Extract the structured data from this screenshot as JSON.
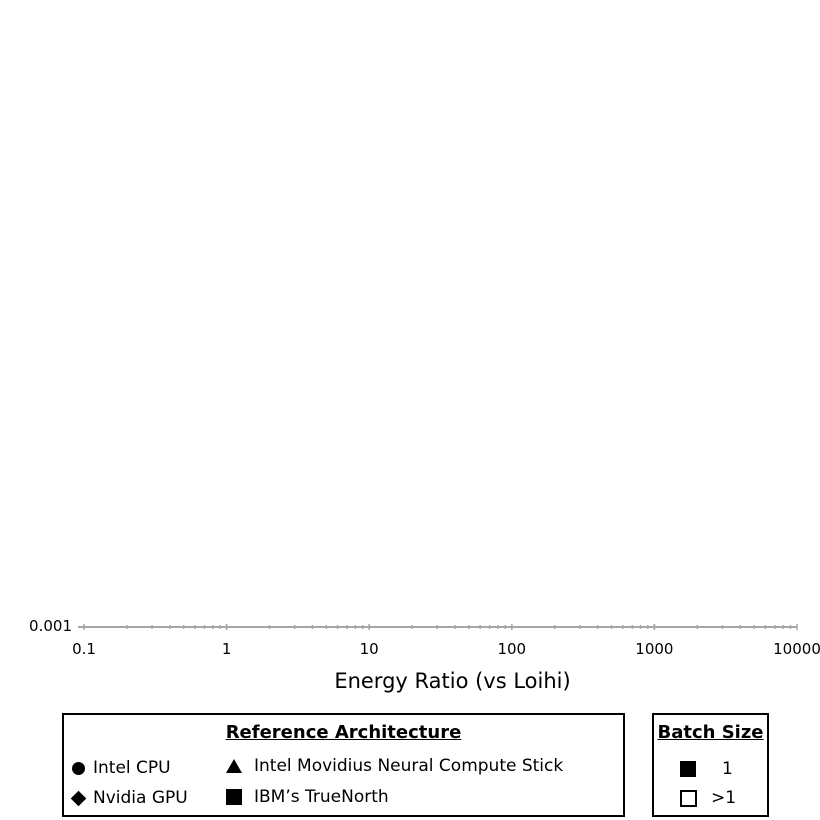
{
  "chart_data": {
    "type": "scatter",
    "title": "",
    "xlabel": "Energy Ratio (vs Loihi)",
    "ylabel": "",
    "xscale": "log",
    "xlim": [
      0.1,
      10000
    ],
    "x_ticks": [
      "0.1",
      "1",
      "10",
      "100",
      "1000",
      "10000"
    ],
    "y_ticks_visible": [
      "0.001"
    ],
    "series": [],
    "legends": {
      "reference": {
        "title": "Reference Architecture",
        "entries": [
          {
            "label": "Intel CPU",
            "marker": "circle"
          },
          {
            "label": "Nvidia GPU",
            "marker": "diamond"
          },
          {
            "label": "Intel Movidius Neural Compute Stick",
            "marker": "triangle"
          },
          {
            "label": "IBM’s TrueNorth",
            "marker": "square"
          }
        ]
      },
      "batch": {
        "title": "Batch Size",
        "entries": [
          {
            "label": "1",
            "marker": "filled"
          },
          {
            "label": ">1",
            "marker": "open"
          }
        ]
      }
    },
    "colors": {
      "axis": "#a6a6a6",
      "text": "#000000"
    }
  }
}
